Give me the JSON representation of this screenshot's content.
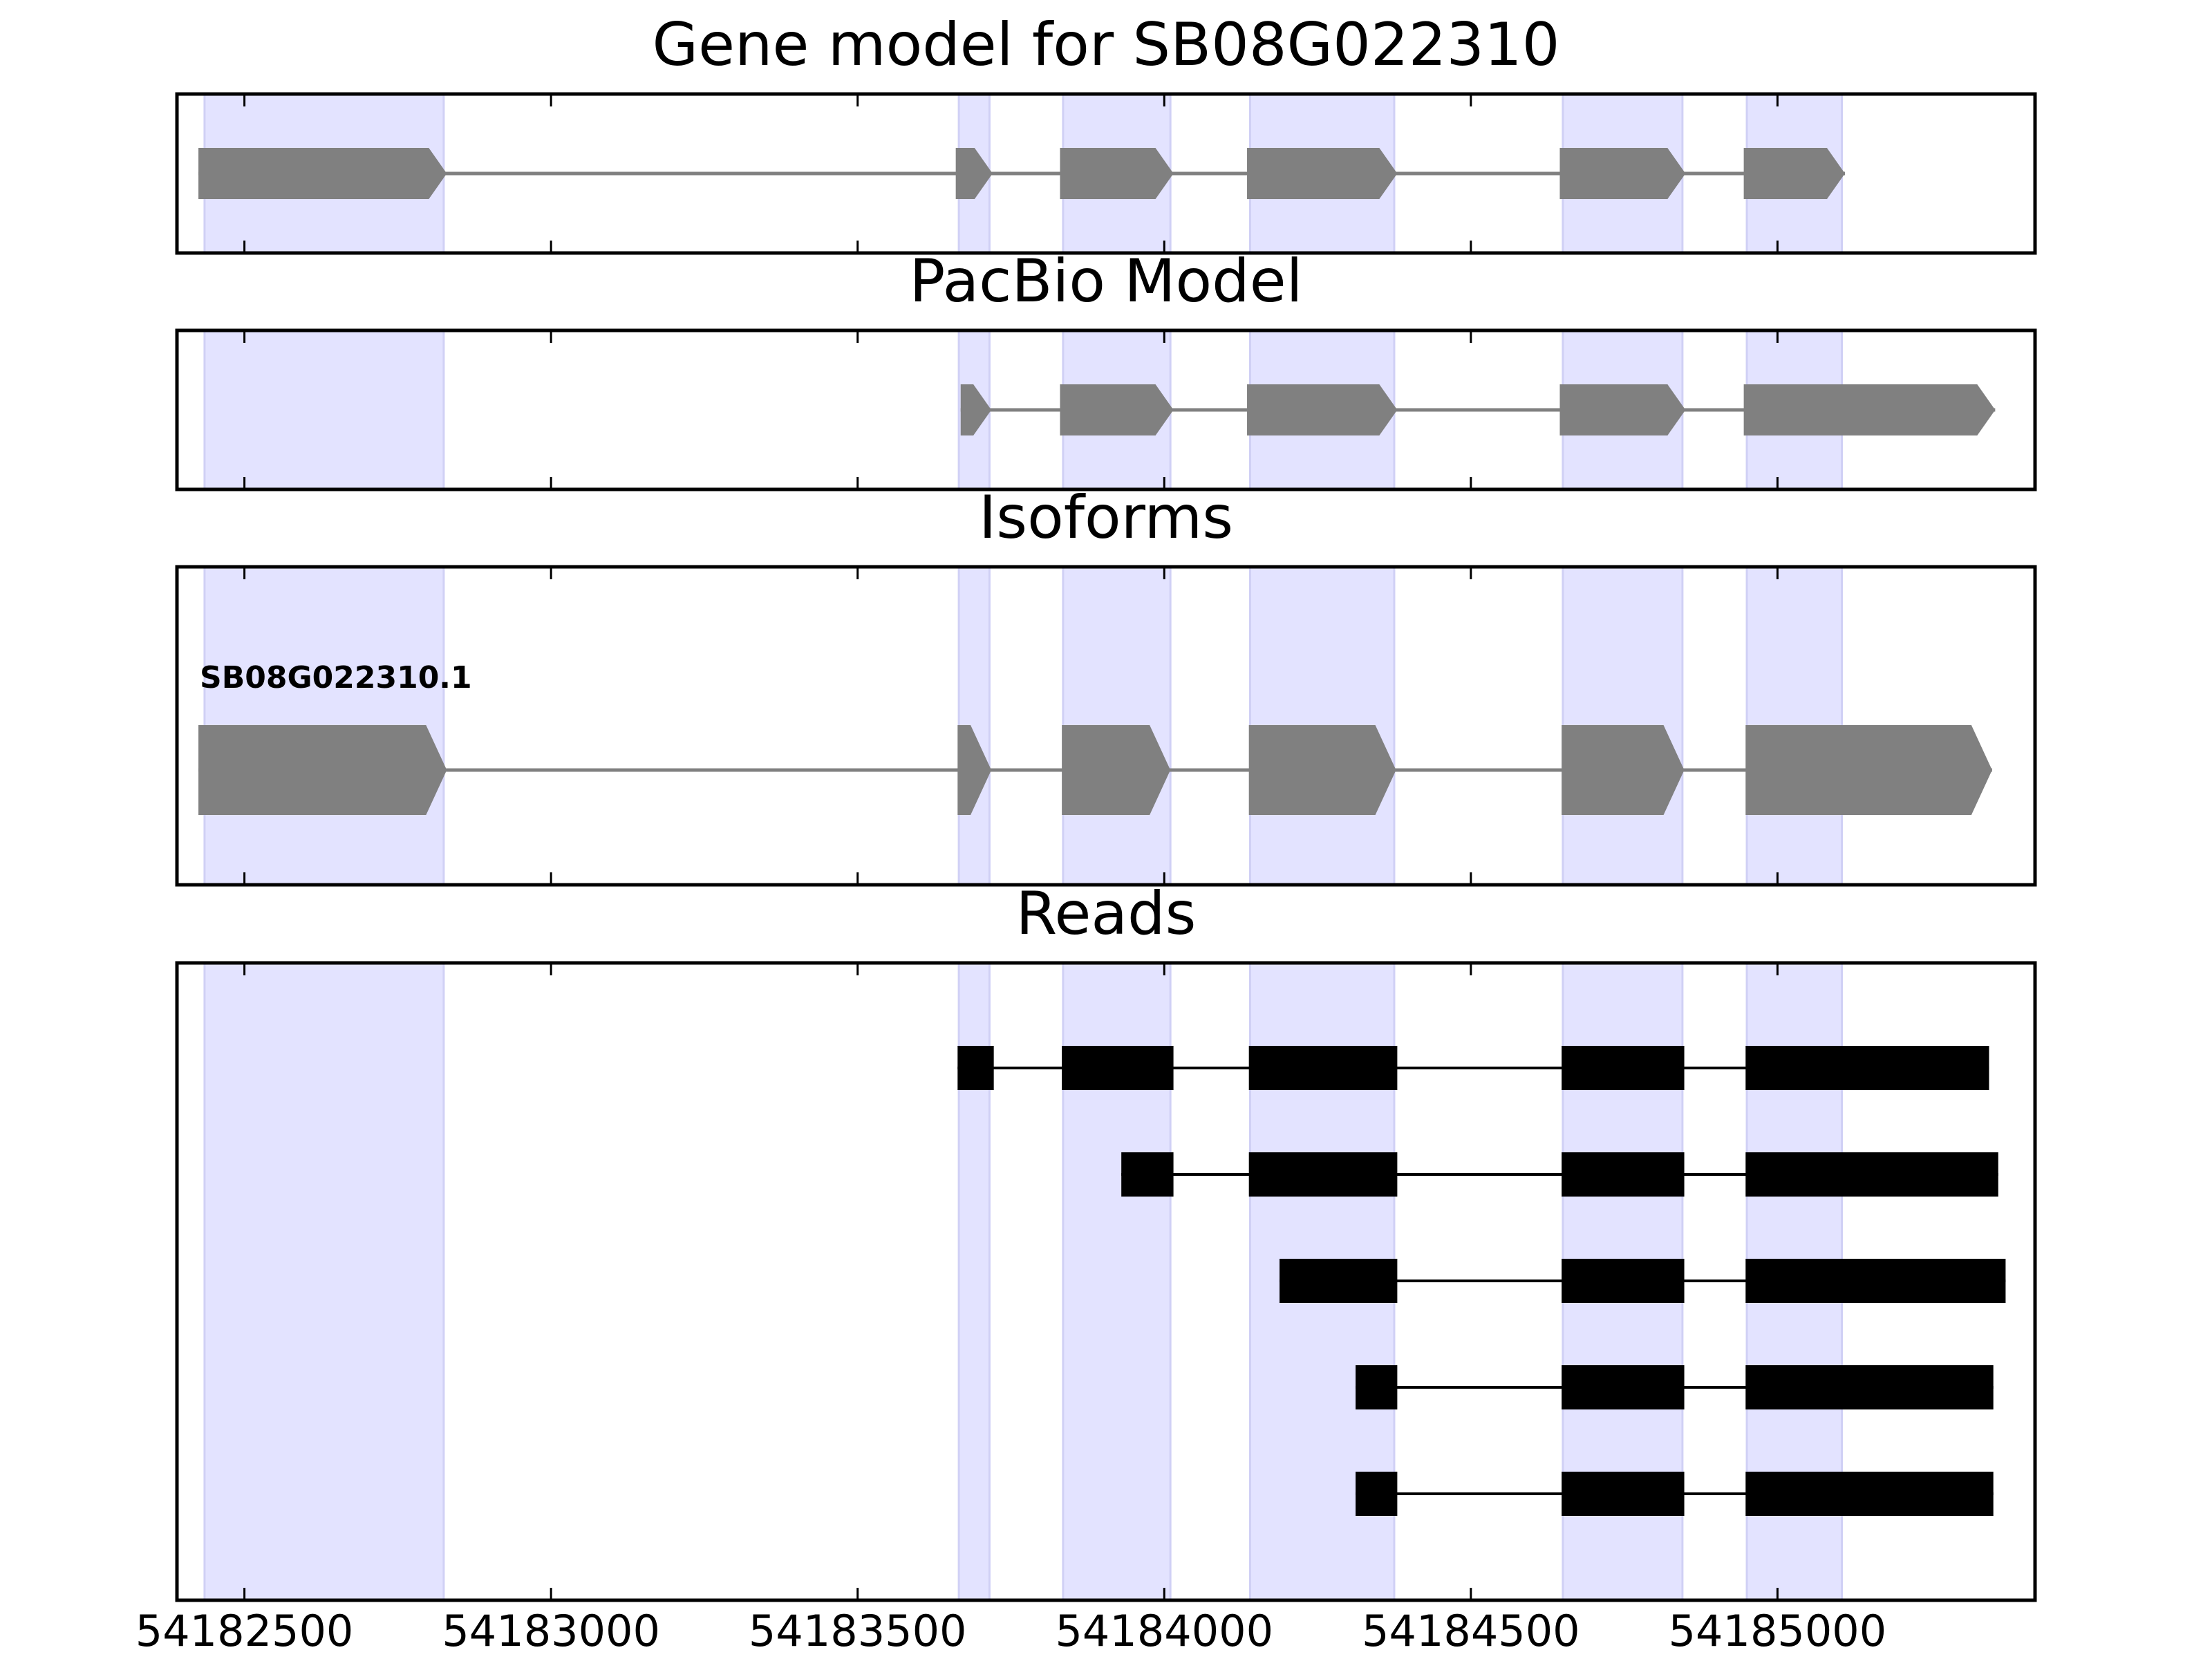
{
  "chart_data": {
    "type": "gene-track",
    "xlim": [
      54182390,
      54185420
    ],
    "x_ticks": [
      54182500,
      54183000,
      54183500,
      54184000,
      54184500,
      54185000
    ],
    "x_tick_labels": [
      "54182500",
      "54183000",
      "54183500",
      "54184000",
      "54184500",
      "54185000"
    ],
    "colors": {
      "highlight": "#e3e3ff",
      "highlight_edge": "#d0d0f5",
      "feature": "#808080",
      "read": "#000000",
      "axis": "#000000"
    },
    "highlight_regions": [
      [
        54182435,
        54182825
      ],
      [
        54183665,
        54183715
      ],
      [
        54183835,
        54184010
      ],
      [
        54184140,
        54184375
      ],
      [
        54184650,
        54184845
      ],
      [
        54184950,
        54185105
      ]
    ],
    "panels": [
      {
        "id": "gene-model",
        "title": "Gene model for SB08G022310",
        "kind": "arrow-model",
        "features": [
          {
            "label": "",
            "exons": [
              [
                54182425,
                54182830
              ],
              [
                54183660,
                54183720
              ],
              [
                54183830,
                54184015
              ],
              [
                54184135,
                54184380
              ],
              [
                54184645,
                54184850
              ],
              [
                54184945,
                54185110
              ]
            ]
          }
        ]
      },
      {
        "id": "pacbio-model",
        "title": "PacBio Model",
        "kind": "arrow-model",
        "features": [
          {
            "label": "",
            "exons": [
              [
                54183668,
                54183718
              ],
              [
                54183830,
                54184015
              ],
              [
                54184135,
                54184380
              ],
              [
                54184645,
                54184850
              ],
              [
                54184945,
                54185355
              ]
            ]
          }
        ]
      },
      {
        "id": "isoforms",
        "title": "Isoforms",
        "kind": "arrow-model",
        "features": [
          {
            "label": "SB08G022310.1",
            "exons": [
              [
                54182425,
                54182830
              ],
              [
                54183663,
                54183718
              ],
              [
                54183833,
                54184010
              ],
              [
                54184138,
                54184378
              ],
              [
                54184648,
                54184848
              ],
              [
                54184948,
                54185350
              ]
            ]
          }
        ]
      },
      {
        "id": "reads",
        "title": "Reads",
        "kind": "reads",
        "reads": [
          [
            [
              54183663,
              54183722
            ],
            [
              54183833,
              54184015
            ],
            [
              54184138,
              54184380
            ],
            [
              54184648,
              54184848
            ],
            [
              54184948,
              54185345
            ]
          ],
          [
            [
              54183930,
              54184015
            ],
            [
              54184138,
              54184380
            ],
            [
              54184648,
              54184848
            ],
            [
              54184948,
              54185360
            ]
          ],
          [
            [
              54184188,
              54184380
            ],
            [
              54184648,
              54184848
            ],
            [
              54184948,
              54185372
            ]
          ],
          [
            [
              54184312,
              54184380
            ],
            [
              54184648,
              54184848
            ],
            [
              54184948,
              54185352
            ]
          ],
          [
            [
              54184312,
              54184380
            ],
            [
              54184648,
              54184848
            ],
            [
              54184948,
              54185352
            ]
          ]
        ]
      }
    ]
  }
}
